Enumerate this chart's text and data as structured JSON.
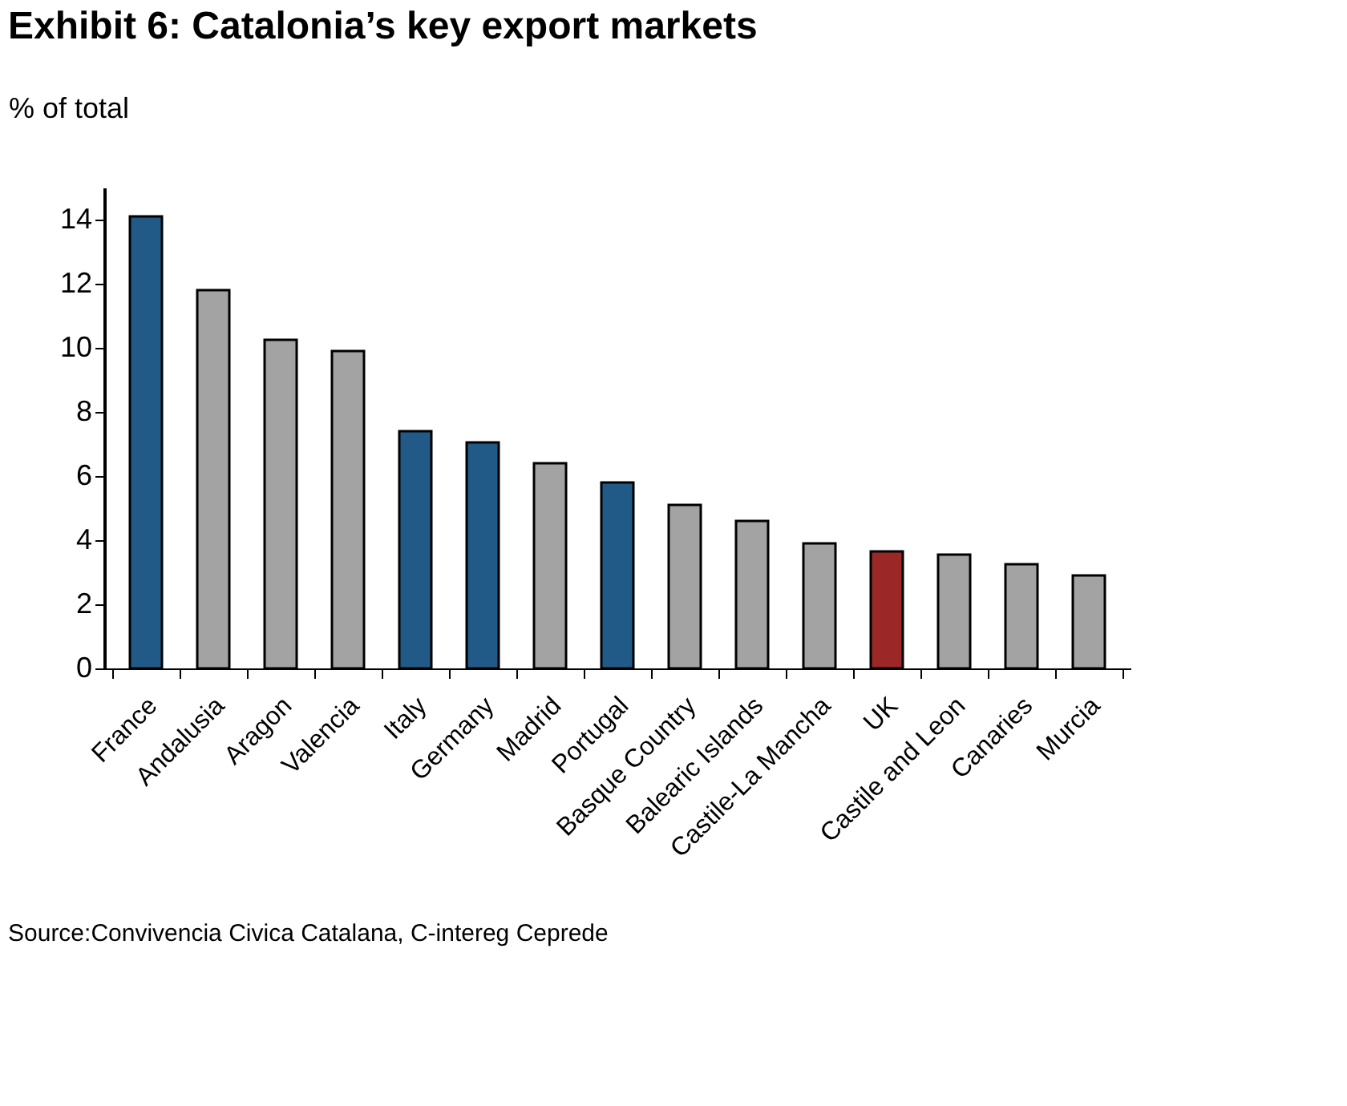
{
  "chart_data": {
    "type": "bar",
    "title": "Exhibit 6: Catalonia’s key export markets",
    "ylabel": "% of total",
    "categories": [
      "France",
      "Andalusia",
      "Aragon",
      "Valencia",
      "Italy",
      "Germany",
      "Madrid",
      "Portugal",
      "Basque Country",
      "Balearic Islands",
      "Castile-La Mancha",
      "UK",
      "Castile and Leon",
      "Canaries",
      "Murcia"
    ],
    "values": [
      14.1,
      11.8,
      10.25,
      9.9,
      7.4,
      7.05,
      6.4,
      5.8,
      5.1,
      4.6,
      3.9,
      3.65,
      3.55,
      3.25,
      2.9
    ],
    "colors": [
      "#215a87",
      "#a3a3a3",
      "#a3a3a3",
      "#a3a3a3",
      "#215a87",
      "#215a87",
      "#a3a3a3",
      "#215a87",
      "#a3a3a3",
      "#a3a3a3",
      "#a3a3a3",
      "#9b2727",
      "#a3a3a3",
      "#a3a3a3",
      "#a3a3a3"
    ],
    "ylim": [
      0,
      15
    ],
    "yticks": [
      0,
      2,
      4,
      6,
      8,
      10,
      12,
      14
    ],
    "grid": false,
    "annotations": [
      "Source:Convivencia Civica Catalana,  C-intereg Ceprede"
    ]
  }
}
